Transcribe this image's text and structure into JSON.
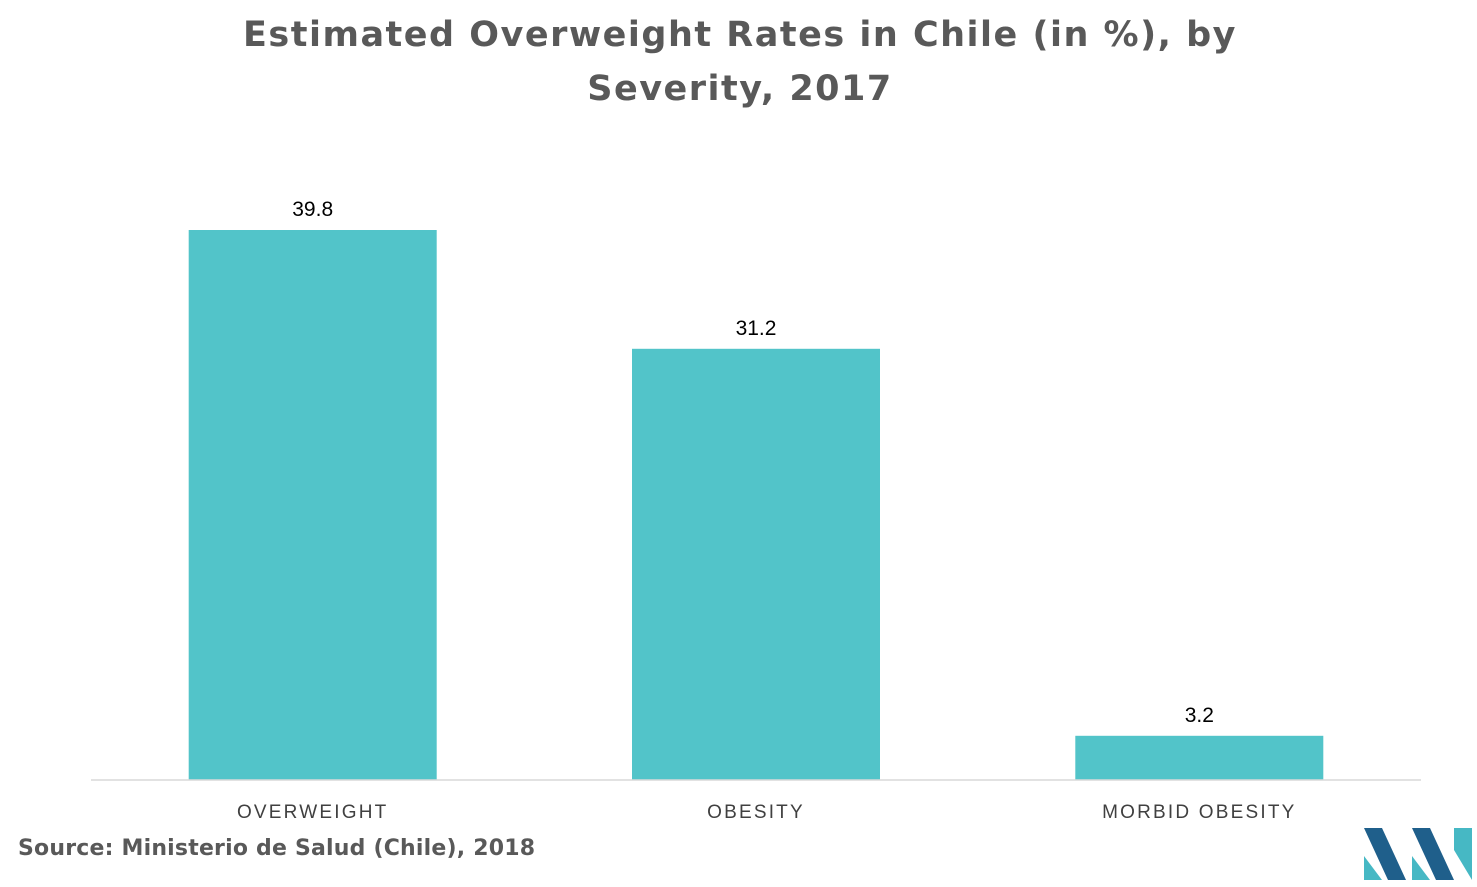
{
  "title_lines": [
    "Estimated Overweight Rates in Chile (in %), by",
    "Severity, 2017"
  ],
  "source": "Source: Ministerio de Salud (Chile), 2018",
  "colors": {
    "bar": "#52c4c9",
    "title": "#595959",
    "label": "#404040",
    "axis": "#d9d9d9",
    "logo_dark": "#1f5f8b",
    "logo_light": "#46b8c4"
  },
  "logo": "mordor-intelligence-logo",
  "chart_data": {
    "type": "bar",
    "title": "Estimated Overweight Rates in Chile (in %), by Severity, 2017",
    "categories": [
      "OVERWEIGHT",
      "OBESITY",
      "MORBID OBESITY"
    ],
    "values": [
      39.8,
      31.2,
      3.2
    ],
    "value_labels": [
      "39.8",
      "31.2",
      "3.2"
    ],
    "ylim": [
      0,
      39.8
    ],
    "grid": false,
    "legend": "none"
  }
}
